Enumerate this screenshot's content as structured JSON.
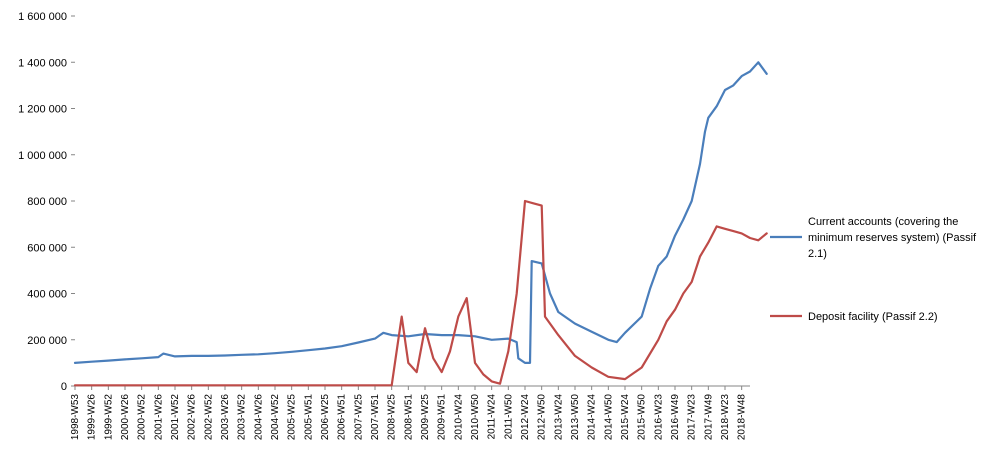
{
  "chart_data": {
    "type": "line",
    "title": "",
    "xlabel": "",
    "ylabel": "",
    "ylim": [
      0,
      1600000
    ],
    "yticks": [
      0,
      200000,
      400000,
      600000,
      800000,
      1000000,
      1200000,
      1400000,
      1600000
    ],
    "ytick_labels": [
      "0",
      "200 000",
      "400 000",
      "600 000",
      "800 000",
      "1 000 000",
      "1 200 000",
      "1 400 000",
      "1 600 000"
    ],
    "xtick_labels": [
      "1998-W53",
      "1999-W26",
      "1999-W52",
      "2000-W26",
      "2000-W52",
      "2001-W26",
      "2001-W52",
      "2002-W26",
      "2002-W52",
      "2003-W26",
      "2003-W52",
      "2004-W26",
      "2004-W52",
      "2005-W25",
      "2005-W51",
      "2006-W25",
      "2006-W51",
      "2007-W25",
      "2007-W51",
      "2008-W25",
      "2008-W51",
      "2009-W25",
      "2009-W51",
      "2010-W24",
      "2010-W50",
      "2011-W24",
      "2011-W50",
      "2012-W24",
      "2012-W50",
      "2013-W24",
      "2013-W50",
      "2014-W24",
      "2014-W50",
      "2015-W24",
      "2015-W50",
      "2016-W23",
      "2016-W49",
      "2017-W23",
      "2017-W49",
      "2018-W23",
      "2018-W48"
    ],
    "x_units": "half-year tick index (0 = 1998-W53, 40 = 2018-W48)",
    "grid": false,
    "legend_position": "right",
    "series": [
      {
        "name": "Current accounts (covering the minimum reserves system) (Passif 2.1)",
        "color": "#4a7ebb",
        "points": [
          [
            0,
            100000
          ],
          [
            1,
            105000
          ],
          [
            2,
            110000
          ],
          [
            3,
            115000
          ],
          [
            4,
            120000
          ],
          [
            5,
            125000
          ],
          [
            5.3,
            140000
          ],
          [
            6,
            128000
          ],
          [
            7,
            130000
          ],
          [
            8,
            130000
          ],
          [
            9,
            132000
          ],
          [
            10,
            135000
          ],
          [
            11,
            137000
          ],
          [
            12,
            142000
          ],
          [
            13,
            148000
          ],
          [
            14,
            155000
          ],
          [
            15,
            162000
          ],
          [
            16,
            172000
          ],
          [
            17,
            188000
          ],
          [
            18,
            205000
          ],
          [
            18.5,
            230000
          ],
          [
            19,
            220000
          ],
          [
            20,
            215000
          ],
          [
            21,
            225000
          ],
          [
            22,
            220000
          ],
          [
            23,
            220000
          ],
          [
            24,
            215000
          ],
          [
            25,
            200000
          ],
          [
            26,
            205000
          ],
          [
            26.5,
            190000
          ],
          [
            26.6,
            120000
          ],
          [
            27,
            100000
          ],
          [
            27.3,
            100000
          ],
          [
            27.4,
            540000
          ],
          [
            28,
            530000
          ],
          [
            28.5,
            400000
          ],
          [
            29,
            320000
          ],
          [
            30,
            270000
          ],
          [
            31,
            235000
          ],
          [
            32,
            200000
          ],
          [
            32.5,
            190000
          ],
          [
            33,
            230000
          ],
          [
            34,
            300000
          ],
          [
            34.5,
            420000
          ],
          [
            35,
            520000
          ],
          [
            35.5,
            560000
          ],
          [
            36,
            650000
          ],
          [
            36.5,
            720000
          ],
          [
            37,
            800000
          ],
          [
            37.5,
            960000
          ],
          [
            37.8,
            1100000
          ],
          [
            38,
            1160000
          ],
          [
            38.5,
            1210000
          ],
          [
            39,
            1280000
          ],
          [
            39.5,
            1300000
          ],
          [
            40,
            1340000
          ],
          [
            40.5,
            1360000
          ],
          [
            41,
            1400000
          ],
          [
            41.5,
            1350000
          ]
        ]
      },
      {
        "name": "Deposit facility (Passif 2.2)",
        "color": "#be4b48",
        "points": [
          [
            0,
            3000
          ],
          [
            5,
            3000
          ],
          [
            10,
            3000
          ],
          [
            15,
            3000
          ],
          [
            19,
            3000
          ],
          [
            19.4,
            200000
          ],
          [
            19.6,
            300000
          ],
          [
            20,
            100000
          ],
          [
            20.5,
            60000
          ],
          [
            21,
            250000
          ],
          [
            21.5,
            120000
          ],
          [
            22,
            60000
          ],
          [
            22.5,
            150000
          ],
          [
            23,
            300000
          ],
          [
            23.5,
            380000
          ],
          [
            24,
            100000
          ],
          [
            24.5,
            50000
          ],
          [
            25,
            20000
          ],
          [
            25.5,
            10000
          ],
          [
            26,
            150000
          ],
          [
            26.5,
            400000
          ],
          [
            27,
            800000
          ],
          [
            27.5,
            790000
          ],
          [
            28,
            780000
          ],
          [
            28.2,
            300000
          ],
          [
            29,
            220000
          ],
          [
            30,
            130000
          ],
          [
            31,
            80000
          ],
          [
            32,
            40000
          ],
          [
            33,
            30000
          ],
          [
            34,
            80000
          ],
          [
            35,
            200000
          ],
          [
            35.5,
            280000
          ],
          [
            36,
            330000
          ],
          [
            36.5,
            400000
          ],
          [
            37,
            450000
          ],
          [
            37.5,
            560000
          ],
          [
            38,
            620000
          ],
          [
            38.5,
            690000
          ],
          [
            39,
            680000
          ],
          [
            39.5,
            670000
          ],
          [
            40,
            660000
          ],
          [
            40.5,
            640000
          ],
          [
            41,
            630000
          ],
          [
            41.5,
            660000
          ]
        ]
      }
    ]
  },
  "legend": {
    "items": [
      {
        "lines": [
          "Current accounts (covering the",
          "minimum reserves system) (Passif",
          "2.1)"
        ],
        "color": "#4a7ebb"
      },
      {
        "lines": [
          "Deposit facility (Passif 2.2)"
        ],
        "color": "#be4b48"
      }
    ]
  }
}
